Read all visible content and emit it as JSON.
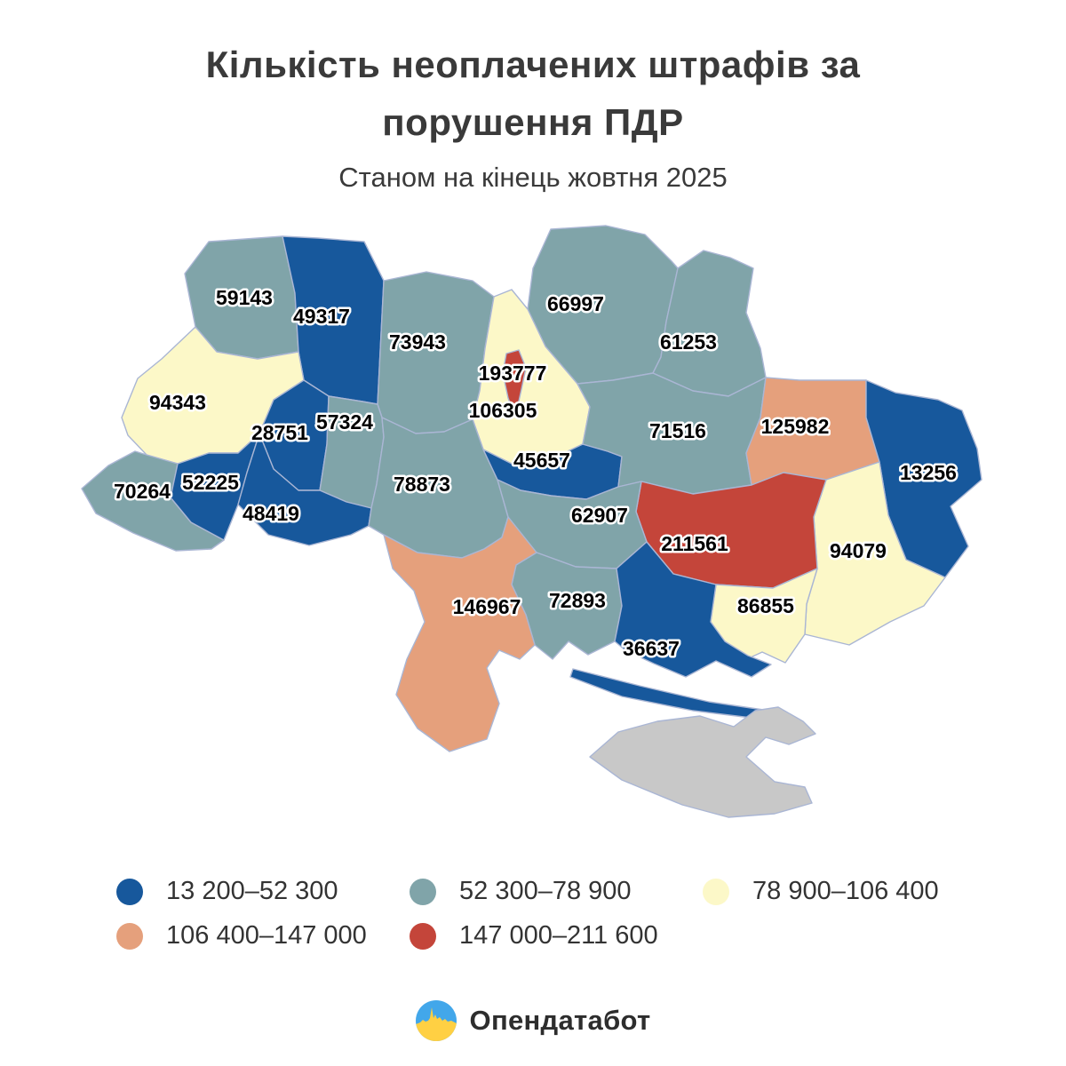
{
  "header": {
    "title_line1": "Кількість неоплачених штрафів за",
    "title_line2": "порушення ПДР",
    "subtitle": "Станом на кінець жовтня 2025"
  },
  "palette": {
    "no_data": "#c8c8c8",
    "border": "#aab6d4",
    "label_text": "#000000",
    "label_halo": "#ffffff"
  },
  "chart_data": {
    "type": "heatmap",
    "variant": "choropleth map of Ukraine oblasts",
    "title": "Кількість неоплачених штрафів за порушення ПДР",
    "subtitle": "Станом на кінець жовтня 2025",
    "legend_position": "bottom",
    "buckets": [
      {
        "id": "b1",
        "range": "13 200–52 300",
        "color": "#17589c"
      },
      {
        "id": "b2",
        "range": "52 300–78 900",
        "color": "#80a4a9"
      },
      {
        "id": "b3",
        "range": "78 900–106 400",
        "color": "#fcf8c8"
      },
      {
        "id": "b4",
        "range": "106 400–147 000",
        "color": "#e5a07c"
      },
      {
        "id": "b5",
        "range": "147 000–211 600",
        "color": "#c4453a"
      }
    ],
    "regions": [
      {
        "id": "volyn",
        "value": 59143,
        "bucket": "b2"
      },
      {
        "id": "rivne",
        "value": 49317,
        "bucket": "b1"
      },
      {
        "id": "zhytomyr",
        "value": 73943,
        "bucket": "b2"
      },
      {
        "id": "kyiv-oblast",
        "value": 106305,
        "bucket": "b3"
      },
      {
        "id": "kyiv-city",
        "value": 193777,
        "bucket": "b5"
      },
      {
        "id": "chernihiv",
        "value": 66997,
        "bucket": "b2"
      },
      {
        "id": "sumy",
        "value": 61253,
        "bucket": "b2"
      },
      {
        "id": "lviv",
        "value": 94343,
        "bucket": "b3"
      },
      {
        "id": "ternopil",
        "value": 28751,
        "bucket": "b1"
      },
      {
        "id": "khmelnytskyi",
        "value": 57324,
        "bucket": "b2"
      },
      {
        "id": "zakarpattia",
        "value": 70264,
        "bucket": "b2"
      },
      {
        "id": "ivano-frankivsk",
        "value": 52225,
        "bucket": "b1"
      },
      {
        "id": "chernivtsi",
        "value": 48419,
        "bucket": "b1"
      },
      {
        "id": "vinnytsia",
        "value": 78873,
        "bucket": "b2"
      },
      {
        "id": "cherkasy",
        "value": 45657,
        "bucket": "b1"
      },
      {
        "id": "poltava",
        "value": 71516,
        "bucket": "b2"
      },
      {
        "id": "kharkiv",
        "value": 125982,
        "bucket": "b4"
      },
      {
        "id": "luhansk",
        "value": 13256,
        "bucket": "b1"
      },
      {
        "id": "donetsk",
        "value": 94079,
        "bucket": "b3"
      },
      {
        "id": "dnipropetrovsk",
        "value": 211561,
        "bucket": "b5"
      },
      {
        "id": "zaporizhzhia",
        "value": 86855,
        "bucket": "b3"
      },
      {
        "id": "kirovohrad",
        "value": 62907,
        "bucket": "b2"
      },
      {
        "id": "mykolaiv",
        "value": 72893,
        "bucket": "b2"
      },
      {
        "id": "odesa",
        "value": 146967,
        "bucket": "b4"
      },
      {
        "id": "kherson",
        "value": 36637,
        "bucket": "b1"
      },
      {
        "id": "kherson-spit",
        "value": null,
        "bucket": "b1"
      },
      {
        "id": "crimea",
        "value": null,
        "bucket": "no_data"
      }
    ]
  },
  "footer": {
    "brand": "Опендатабот",
    "logo_colors": {
      "top": "#42a7ea",
      "bottom": "#ffd043"
    }
  }
}
